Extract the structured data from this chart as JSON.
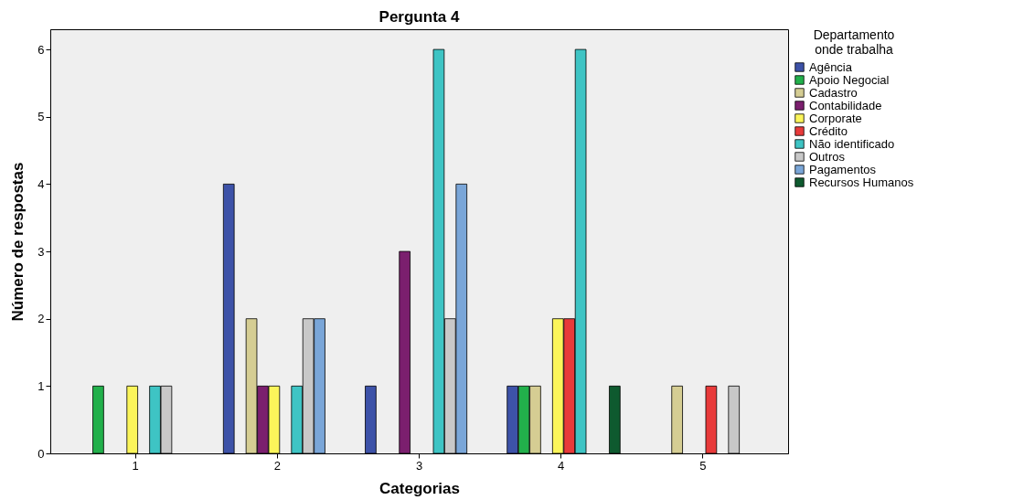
{
  "chart_data": {
    "type": "bar",
    "title": "Pergunta 4",
    "xlabel": "Categorias",
    "ylabel": "Número de respostas",
    "legend_title": "Departamento\nonde trabalha",
    "categories": [
      "1",
      "2",
      "3",
      "4",
      "5"
    ],
    "series": [
      {
        "name": "Agência",
        "color": "#3d52a8",
        "values": [
          0,
          4,
          1,
          1,
          0
        ]
      },
      {
        "name": "Apoio Negocial",
        "color": "#22b04b",
        "values": [
          1,
          0,
          0,
          1,
          0
        ]
      },
      {
        "name": "Cadastro",
        "color": "#d5cd93",
        "values": [
          0,
          2,
          0,
          1,
          1
        ]
      },
      {
        "name": "Contabilidade",
        "color": "#7b1f6e",
        "values": [
          0,
          1,
          3,
          0,
          0
        ]
      },
      {
        "name": "Corporate",
        "color": "#fbf55a",
        "values": [
          1,
          1,
          0,
          2,
          0
        ]
      },
      {
        "name": "Crédito",
        "color": "#e83a3a",
        "values": [
          0,
          0,
          0,
          2,
          1
        ]
      },
      {
        "name": "Não identificado",
        "color": "#3ec4c4",
        "values": [
          1,
          1,
          6,
          6,
          0
        ]
      },
      {
        "name": "Outros",
        "color": "#c8c8c8",
        "values": [
          1,
          2,
          2,
          0,
          1
        ]
      },
      {
        "name": "Pagamentos",
        "color": "#7aa6d8",
        "values": [
          0,
          2,
          4,
          0,
          0
        ]
      },
      {
        "name": "Recursos Humanos",
        "color": "#0e5a2f",
        "values": [
          0,
          0,
          0,
          1,
          0
        ]
      }
    ],
    "ylim": [
      0,
      6.3
    ],
    "yticks": [
      0,
      1,
      2,
      3,
      4,
      5,
      6
    ],
    "grid": false,
    "legend": "right"
  }
}
